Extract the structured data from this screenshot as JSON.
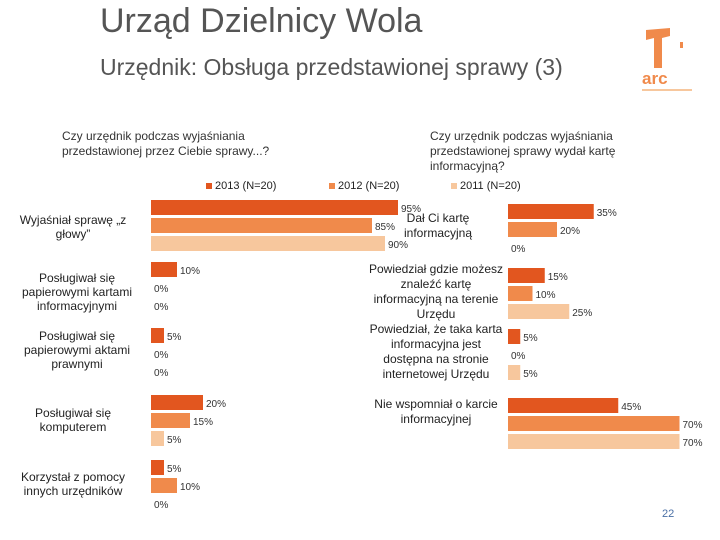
{
  "header": {
    "title": "Urząd Dzielnicy Wola",
    "subtitle": "Urzędnik: Obsługa przedstawionej sprawy (3)",
    "page_number": "22",
    "logo_text": "arc"
  },
  "colors": {
    "y2013": "#e2561f",
    "y2012": "#f08a4b",
    "y2011": "#f7c79d",
    "text_gray": "#555555"
  },
  "chart_data": [
    {
      "type": "bar",
      "orientation": "horizontal",
      "title": "Czy urzędnik podczas wyjaśniania przedstawionej przez Ciebie sprawy...?",
      "categories": [
        "Wyjaśniał sprawę „z głowy”",
        "Posługiwał się papierowymi kartami informacyjnymi",
        "Posługiwał się papierowymi aktami prawnymi",
        "Posługiwał się komputerem",
        "Korzystał z pomocy innych urzędników"
      ],
      "series": [
        {
          "name": "2013 (N=20)",
          "values": [
            95,
            10,
            5,
            20,
            5
          ],
          "labels": [
            "95%",
            "10%",
            "5%",
            "20%",
            "5%"
          ]
        },
        {
          "name": "2012 (N=20)",
          "values": [
            85,
            0,
            0,
            15,
            10
          ],
          "labels": [
            "85%",
            "0%",
            "0%",
            "15%",
            "10%"
          ]
        },
        {
          "name": "2011 (N=20)",
          "values": [
            90,
            0,
            0,
            5,
            0
          ],
          "labels": [
            "90%",
            "0%",
            "0%",
            "5%",
            "0%"
          ]
        }
      ],
      "xlim": [
        0,
        100
      ]
    },
    {
      "type": "bar",
      "orientation": "horizontal",
      "title": "Czy urzędnik podczas wyjaśniania przedstawionej sprawy wydał kartę informacyjną?",
      "categories": [
        "Dał Ci kartę informacyjną",
        "Powiedział gdzie możesz znaleźć kartę informacyjną na terenie Urzędu",
        "Powiedział, że taka karta informacyjna jest dostępna na stronie internetowej Urzędu",
        "Nie wspomniał o karcie informacyjnej"
      ],
      "series": [
        {
          "name": "2013 (N=20)",
          "values": [
            35,
            15,
            5,
            45
          ],
          "labels": [
            "35%",
            "15%",
            "5%",
            "45%"
          ]
        },
        {
          "name": "2012 (N=20)",
          "values": [
            20,
            10,
            0,
            70
          ],
          "labels": [
            "20%",
            "10%",
            "0%",
            "70%"
          ]
        },
        {
          "name": "2011 (N=20)",
          "values": [
            0,
            25,
            5,
            70
          ],
          "labels": [
            "0%",
            "25%",
            "5%",
            "70%"
          ]
        }
      ],
      "xlim": [
        0,
        100
      ]
    }
  ],
  "legend": [
    "2013 (N=20)",
    "2012 (N=20)",
    "2011 (N=20)"
  ]
}
